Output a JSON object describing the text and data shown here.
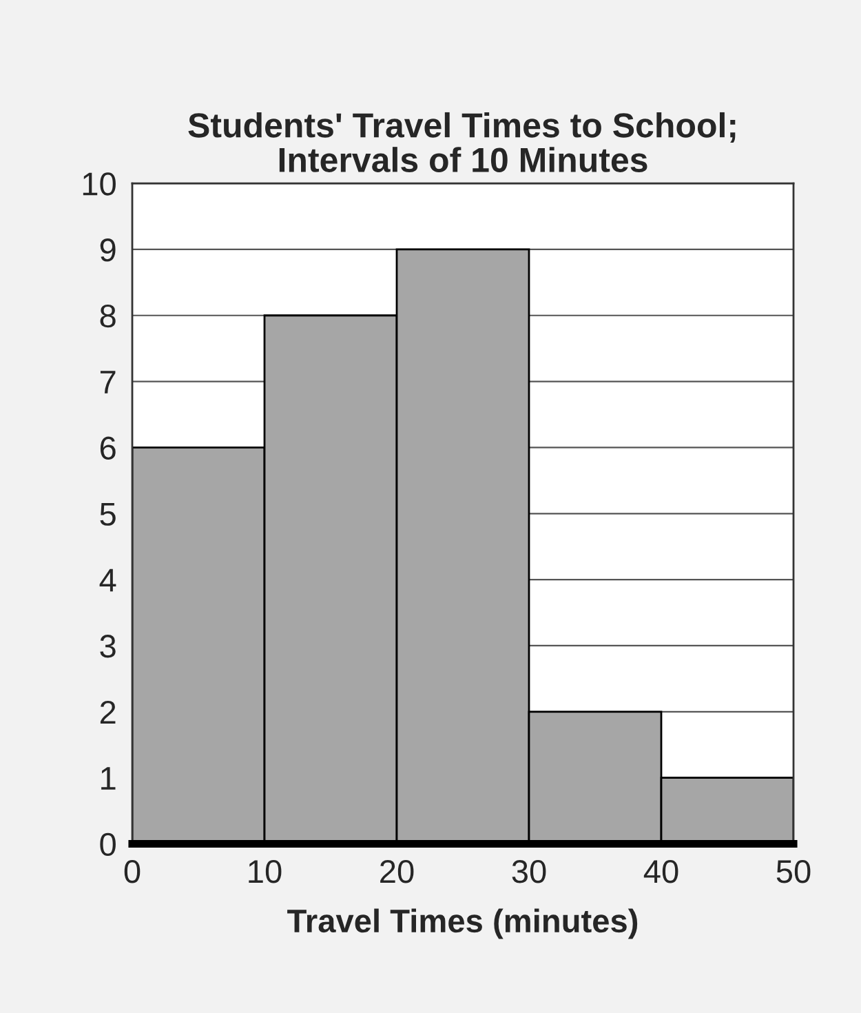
{
  "chart_data": {
    "type": "histogram",
    "title": "Students' Travel Times to School;\nIntervals of 10 Minutes",
    "xlabel": "Travel Times (minutes)",
    "bins": [
      0,
      10,
      20,
      30,
      40,
      50
    ],
    "values": [
      6,
      8,
      9,
      2,
      1
    ],
    "color": "#a6a6a6",
    "xlim": [
      0,
      50
    ],
    "xticks": [
      0,
      10,
      20,
      30,
      40,
      50
    ],
    "ylim": [
      0,
      10
    ],
    "yticks": [
      0,
      1,
      2,
      3,
      4,
      5,
      6,
      7,
      8,
      9,
      10
    ],
    "grid": "y"
  }
}
